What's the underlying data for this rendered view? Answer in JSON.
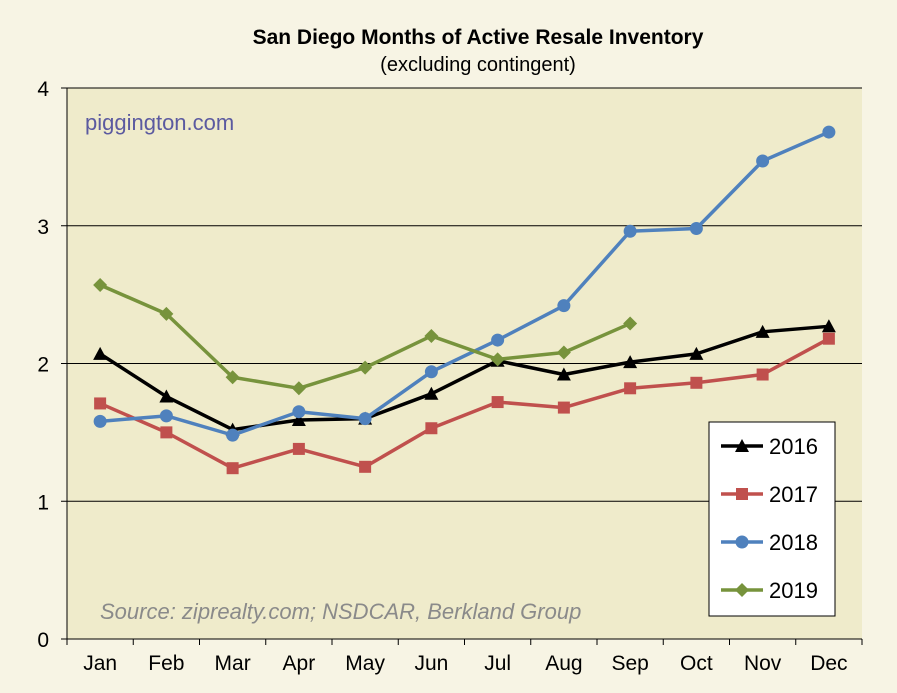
{
  "chart_data": {
    "type": "line",
    "title": "San Diego Months of Active Resale Inventory",
    "subtitle": "(excluding contingent)",
    "watermark": "piggington.com",
    "source": "Source: ziprealty.com; NSDCAR, Berkland Group",
    "categories": [
      "Jan",
      "Feb",
      "Mar",
      "Apr",
      "May",
      "Jun",
      "Jul",
      "Aug",
      "Sep",
      "Oct",
      "Nov",
      "Dec"
    ],
    "ylim": [
      0,
      4
    ],
    "yticks": [
      "0",
      "1",
      "2",
      "3",
      "4"
    ],
    "grid": true,
    "legend_position": "bottom-right",
    "series": [
      {
        "name": "2016",
        "color": "#000000",
        "marker": "triangle",
        "values": [
          2.07,
          1.76,
          1.52,
          1.59,
          1.6,
          1.78,
          2.02,
          1.92,
          2.01,
          2.07,
          2.23,
          2.27
        ]
      },
      {
        "name": "2017",
        "color": "#c0504d",
        "marker": "square",
        "values": [
          1.71,
          1.5,
          1.24,
          1.38,
          1.25,
          1.53,
          1.72,
          1.68,
          1.82,
          1.86,
          1.92,
          2.18
        ]
      },
      {
        "name": "2018",
        "color": "#4f81bd",
        "marker": "circle",
        "values": [
          1.58,
          1.62,
          1.48,
          1.65,
          1.6,
          1.94,
          2.17,
          2.42,
          2.96,
          2.98,
          3.47,
          3.68
        ]
      },
      {
        "name": "2019",
        "color": "#77933c",
        "marker": "diamond",
        "values": [
          2.57,
          2.36,
          1.9,
          1.82,
          1.97,
          2.2,
          2.03,
          2.08,
          2.29,
          null,
          null,
          null
        ]
      }
    ]
  }
}
